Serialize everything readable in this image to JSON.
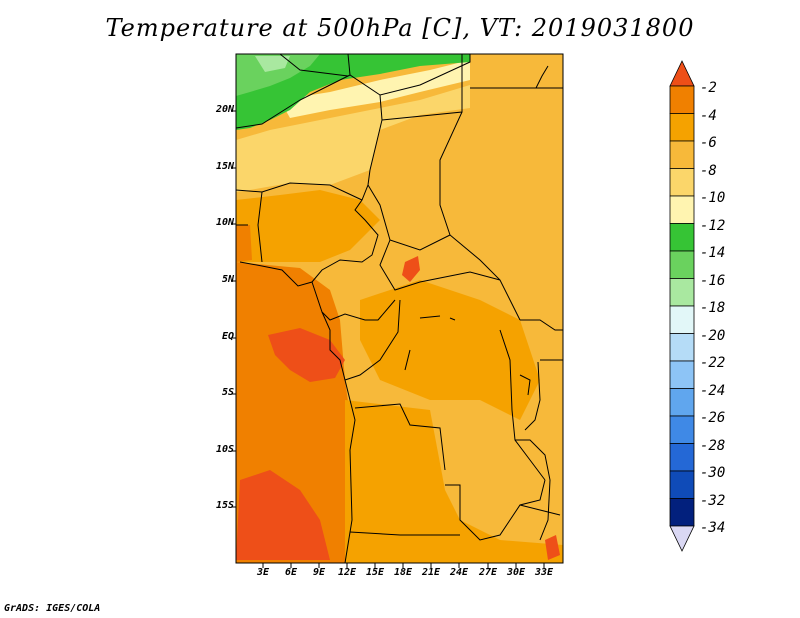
{
  "title": "Temperature at 500hPa [C], VT: 2019031800",
  "footer": "GrADS: IGES/COLA",
  "map": {
    "lat_labels": [
      "20N",
      "15N",
      "10N",
      "5N",
      "EQ",
      "5S",
      "10S",
      "15S"
    ],
    "lon_labels": [
      "3E",
      "6E",
      "9E",
      "12E",
      "15E",
      "18E",
      "21E",
      "24E",
      "27E",
      "30E",
      "33E"
    ]
  },
  "colorbar": {
    "labels": [
      "-2",
      "-4",
      "-6",
      "-8",
      "-10",
      "-12",
      "-14",
      "-16",
      "-18",
      "-20",
      "-22",
      "-24",
      "-26",
      "-28",
      "-30",
      "-32",
      "-34"
    ],
    "colors": [
      "#ee4f18",
      "#f08000",
      "#f5a200",
      "#f7b93a",
      "#fbd66a",
      "#fff4b0",
      "#36c435",
      "#6ad25e",
      "#a9e8a0",
      "#e2f7f8",
      "#b5dcf7",
      "#8dc4f6",
      "#60a6ee",
      "#3f89e6",
      "#2468d6",
      "#0f4bb8",
      "#02207d",
      "#dad8f4"
    ]
  }
}
